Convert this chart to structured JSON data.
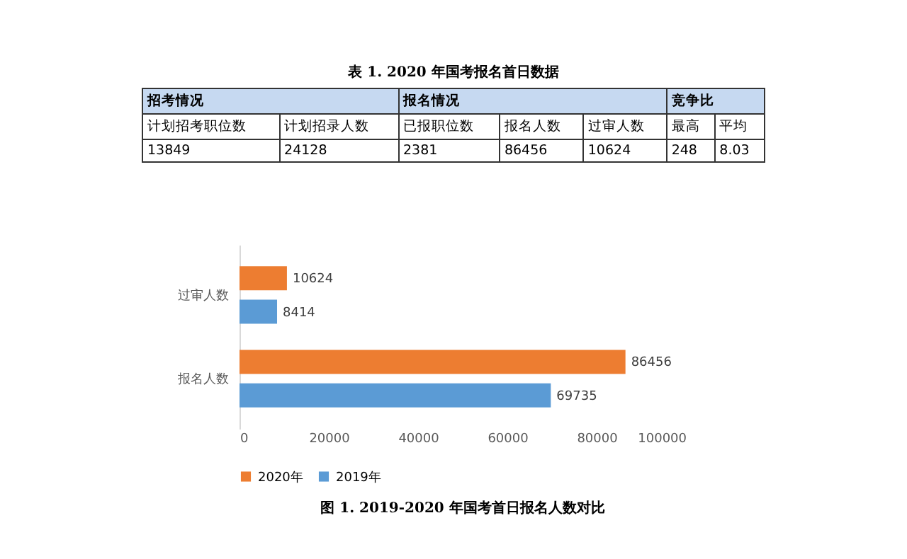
{
  "chart_data": [
    {
      "type": "other",
      "title": "表 1. 2020 年国考报名首日数据",
      "annotations": [
        "招考情况",
        "报名情况",
        "竞争比",
        "计划招考职位数",
        "计划招录人数",
        "已报职位数",
        "报名人数",
        "过审人数",
        "最高",
        "平均",
        "13849",
        "24128",
        "2381",
        "86456",
        "10624",
        "248",
        "8.03"
      ]
    },
    {
      "type": "bar",
      "orientation": "horizontal",
      "title": "图 1. 2019-2020 年国考首日报名人数对比",
      "categories": [
        "过审人数",
        "报名人数"
      ],
      "series": [
        {
          "name": "2020年",
          "color": "#ed7d31",
          "values": [
            10624,
            86456
          ]
        },
        {
          "name": "2019年",
          "color": "#5b9bd5",
          "values": [
            8414,
            69735
          ]
        }
      ],
      "xlim": [
        0,
        100000
      ],
      "xticks": [
        0,
        20000,
        40000,
        60000,
        80000,
        100000
      ],
      "data_labels": true,
      "legend": "bottom"
    }
  ]
}
